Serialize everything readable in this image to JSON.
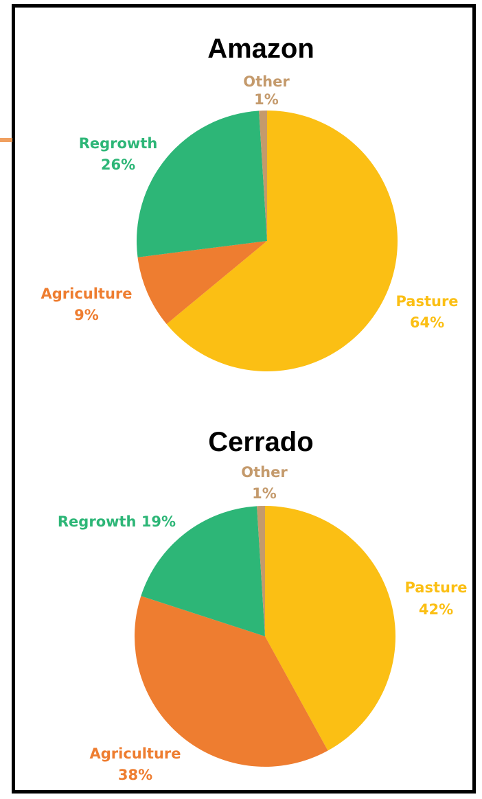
{
  "colors": {
    "pasture": "#fbbf14",
    "agriculture": "#ee7d30",
    "regrowth": "#2db677",
    "other": "#c49a6c"
  },
  "chart_data": [
    {
      "type": "pie",
      "title": "Amazon",
      "series": [
        {
          "name": "Pasture",
          "value": 64,
          "label": "64%"
        },
        {
          "name": "Agriculture",
          "value": 9,
          "label": "9%"
        },
        {
          "name": "Regrowth",
          "value": 26,
          "label": "26%"
        },
        {
          "name": "Other",
          "value": 1,
          "label": "1%"
        }
      ]
    },
    {
      "type": "pie",
      "title": "Cerrado",
      "series": [
        {
          "name": "Pasture",
          "value": 42,
          "label": "42%"
        },
        {
          "name": "Agriculture",
          "value": 38,
          "label": "38%"
        },
        {
          "name": "Regrowth",
          "value": 19,
          "label": "Regrowth 19%"
        },
        {
          "name": "Other",
          "value": 1,
          "label": "1%"
        }
      ]
    }
  ]
}
